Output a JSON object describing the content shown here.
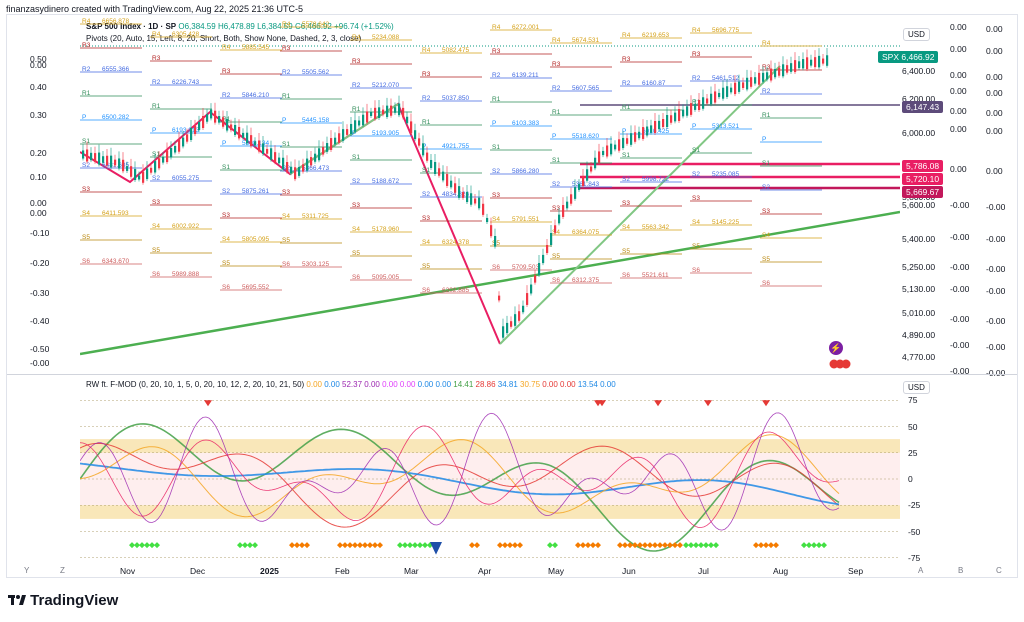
{
  "header": {
    "created_by": "finanzasydinero created with TradingView.com, Aug 22, 2025 21:36 UTC-5"
  },
  "main_legend": {
    "symbol": "S&P 500 Index · 1D · SP",
    "open": "O6,384.59",
    "high": "H6,478.89",
    "low": "L6,384.59",
    "close": "C6,466.92",
    "change": "+96.74 (+1.52%)",
    "pivots": "Pivots (20, Auto, 15, Left, 8, 20, Short, Both, Show None, Dashed, 2, 3, close)"
  },
  "left_scale": [
    "0.50",
    "0.00",
    "0.40",
    "0.30",
    "0.20",
    "0.10",
    "0.00",
    "0.00",
    "-0.10",
    "-0.20",
    "-0.30",
    "-0.40",
    "-0.50",
    "-0.00"
  ],
  "right_scale_a": [
    "0.00",
    "0.00",
    "0.00",
    "0.00",
    "0.00",
    "0.00",
    "0.00",
    "-0.00",
    "-0.00",
    "-0.00",
    "-0.00",
    "-0.00",
    "-0.00",
    "-0.00",
    "-0.00",
    "-0.00"
  ],
  "right_scale_b": [
    "0.00",
    "0.00",
    "0.00",
    "0.00",
    "0.00",
    "0.00",
    "0.00",
    "-0.00",
    "-0.00",
    "-0.00",
    "-0.00",
    "-0.00",
    "-0.00",
    "-0.00",
    "-0.00",
    "-0.00"
  ],
  "price_axis": {
    "currency": "USD",
    "labels": [
      "6,400.00",
      "6,200.00",
      "6,000.00",
      "5,800.00",
      "5,600.00",
      "5,400.00",
      "5,250.00",
      "5,130.00",
      "5,010.00",
      "4,890.00",
      "4,770.00"
    ]
  },
  "price_tags": [
    {
      "prefix": "SPX",
      "value": "6,466.92",
      "color": "#089981"
    },
    {
      "prefix": "",
      "value": "6,147.43",
      "color": "#5d4b7a"
    },
    {
      "prefix": "",
      "value": "5,786.08",
      "color": "#e91e63"
    },
    {
      "prefix": "",
      "value": "5,720.10",
      "color": "#e91e63"
    },
    {
      "prefix": "",
      "value": "5,669.67",
      "color": "#c2185b"
    }
  ],
  "pivot_labels": [
    {
      "t": "R4",
      "c": "#d4a017"
    },
    {
      "t": "R3",
      "c": "#b22222"
    },
    {
      "t": "R2",
      "c": "#4169e1"
    },
    {
      "t": "R1",
      "c": "#2e8b57"
    },
    {
      "t": "P",
      "c": "#1e90ff"
    },
    {
      "t": "S1",
      "c": "#2e8b57"
    },
    {
      "t": "S2",
      "c": "#4169e1"
    },
    {
      "t": "S3",
      "c": "#b22222"
    },
    {
      "t": "S4",
      "c": "#d4a017"
    },
    {
      "t": "S5",
      "c": "#b8860b"
    },
    {
      "t": "S6",
      "c": "#cd5c5c"
    }
  ],
  "pivot_values": [
    "6656.878",
    "6555.366",
    "6500.282",
    "6481.635",
    "6411.593",
    "6343.670",
    "6305.428",
    "6226.743",
    "6193.813",
    "6055.275",
    "6002.922",
    "5989.888",
    "5885.545",
    "5846.210",
    "5898.134",
    "5875.261",
    "5805.095",
    "5695.552",
    "5578.642",
    "5505.562",
    "5445.158",
    "5366.473",
    "5311.725",
    "5303.125",
    "5234.088",
    "5212.070",
    "5193.905",
    "5188.672",
    "5178.960",
    "5095.005",
    "5082.475",
    "5037.850",
    "4921.755",
    "4834.826",
    "6324.378",
    "6202.885",
    "6272.001",
    "6139.211",
    "6103.383",
    "5866.280",
    "5791.551",
    "5709.503",
    "5674.531",
    "5607.565",
    "5518.620",
    "5361.843",
    "6364.075",
    "6312.375",
    "6219.653",
    "6160.87",
    "6010.425",
    "5998.722",
    "5563.342",
    "5521.611",
    "5696.775",
    "5461.512",
    "5313.521",
    "5235.085",
    "5145.225"
  ],
  "indicator": {
    "title": "RW ft. F-MOD (0, 20, 10, 1, 5, 0, 20, 10, 12, 2, 20, 10, 21, 50)",
    "values": [
      {
        "v": "0.00",
        "c": "#f5a623"
      },
      {
        "v": "0.00",
        "c": "#1e88e5"
      },
      {
        "v": "52.37",
        "c": "#9c27b0"
      },
      {
        "v": "0.00",
        "c": "#9c27b0"
      },
      {
        "v": "0.00",
        "c": "#e040fb"
      },
      {
        "v": "0.00",
        "c": "#e040fb"
      },
      {
        "v": "0.00",
        "c": "#1e88e5"
      },
      {
        "v": "0.00",
        "c": "#1e88e5"
      },
      {
        "v": "14.41",
        "c": "#43a047"
      },
      {
        "v": "28.86",
        "c": "#e53935"
      },
      {
        "v": "34.81",
        "c": "#1e88e5"
      },
      {
        "v": "30.75",
        "c": "#f5a623"
      },
      {
        "v": "0.00",
        "c": "#e53935"
      },
      {
        "v": "0.00",
        "c": "#e53935"
      },
      {
        "v": "13.54",
        "c": "#1e88e5"
      },
      {
        "v": "0.00",
        "c": "#1e88e5"
      }
    ],
    "currency": "USD",
    "scale": [
      "75",
      "50",
      "25",
      "0",
      "-25",
      "-50",
      "-75"
    ]
  },
  "x_axis": [
    "Nov",
    "Dec",
    "2025",
    "Feb",
    "Mar",
    "Apr",
    "May",
    "Jun",
    "Jul",
    "Aug",
    "Sep"
  ],
  "bottom_bar": [
    "Y",
    "Z",
    "A",
    "B",
    "C"
  ],
  "brand": "TradingView"
}
